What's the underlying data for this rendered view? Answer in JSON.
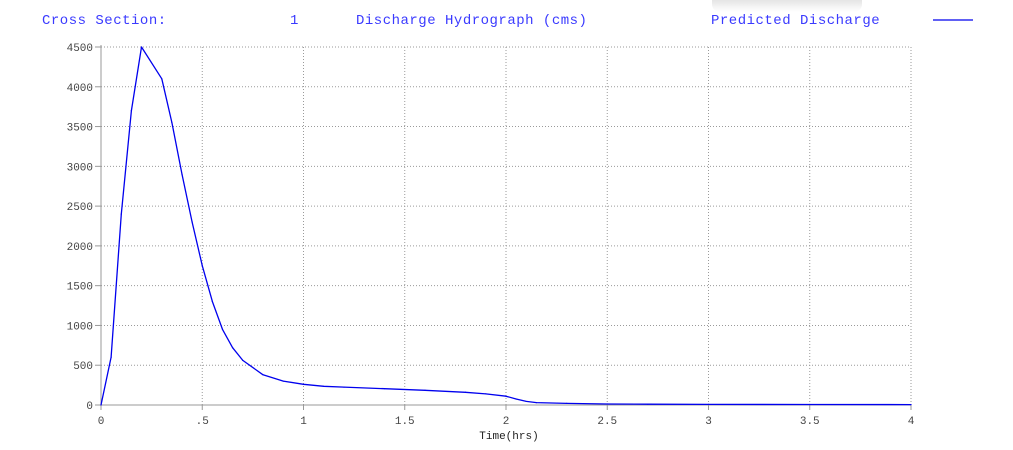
{
  "header": {
    "cross_section_label": "Cross Section:",
    "cross_section_value": "1",
    "chart_title": "Discharge Hydrograph (cms)",
    "legend_label": "Predicted Discharge"
  },
  "colors": {
    "series": "#0000ee",
    "header_text": "#3a3aff",
    "grid": "#9a9a9a",
    "axis": "#999999"
  },
  "chart_data": {
    "type": "line",
    "title": "Discharge Hydrograph (cms)",
    "xlabel": "Time(hrs)",
    "ylabel": "",
    "xlim": [
      0,
      4
    ],
    "ylim": [
      0,
      4500
    ],
    "grid": true,
    "legend": "top-right",
    "x_ticks": [
      0,
      0.5,
      1,
      1.5,
      2,
      2.5,
      3,
      3.5,
      4
    ],
    "x_tick_labels": [
      "0",
      ".5",
      "1",
      "1.5",
      "2",
      "2.5",
      "3",
      "3.5",
      "4"
    ],
    "y_ticks": [
      0,
      500,
      1000,
      1500,
      2000,
      2500,
      3000,
      3500,
      4000,
      4500
    ],
    "y_tick_labels": [
      "0",
      "500",
      "1000",
      "1500",
      "2000",
      "2500",
      "3000",
      "3500",
      "4000",
      "4500"
    ],
    "series": [
      {
        "name": "Predicted Discharge",
        "color": "#0000ee",
        "x": [
          0,
          0.05,
          0.1,
          0.15,
          0.2,
          0.3,
          0.35,
          0.4,
          0.45,
          0.5,
          0.55,
          0.6,
          0.65,
          0.7,
          0.8,
          0.9,
          1.0,
          1.1,
          1.2,
          1.4,
          1.6,
          1.8,
          1.9,
          2.0,
          2.05,
          2.1,
          2.15,
          2.3,
          2.5,
          2.7,
          3.0,
          3.5,
          4.0
        ],
        "y": [
          0,
          600,
          2400,
          3700,
          4500,
          4100,
          3550,
          2900,
          2300,
          1750,
          1300,
          950,
          720,
          560,
          380,
          300,
          260,
          235,
          225,
          205,
          185,
          160,
          140,
          110,
          75,
          45,
          30,
          20,
          13,
          10,
          8,
          6,
          5
        ]
      }
    ]
  }
}
